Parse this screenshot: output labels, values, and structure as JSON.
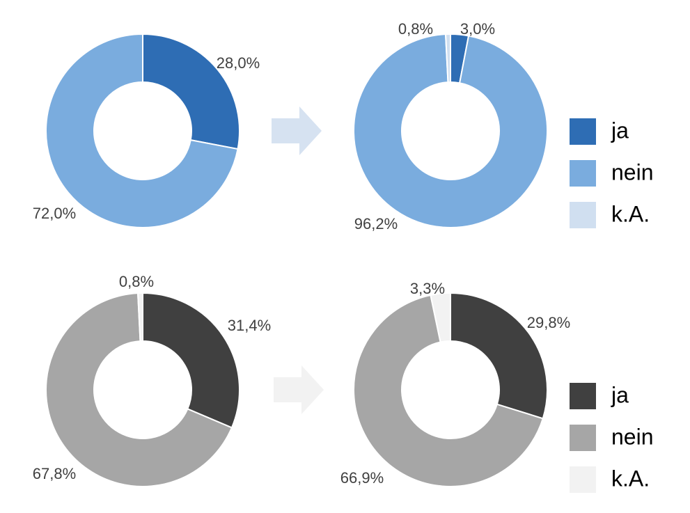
{
  "chart_data": [
    {
      "type": "pie",
      "donut": true,
      "categories": [
        "ja",
        "nein",
        "k.A."
      ],
      "values": [
        28.0,
        72.0,
        0.0
      ],
      "value_labels": [
        "28,0%",
        "72,0%",
        ""
      ],
      "colors": [
        "#2e6db4",
        "#7aacde",
        "#d0dff0"
      ]
    },
    {
      "type": "pie",
      "donut": true,
      "categories": [
        "ja",
        "nein",
        "k.A."
      ],
      "values": [
        3.0,
        96.2,
        0.8
      ],
      "value_labels": [
        "3,0%",
        "96,2%",
        "0,8%"
      ],
      "colors": [
        "#2e6db4",
        "#7aacde",
        "#d0dff0"
      ],
      "legend": {
        "placement": "right",
        "entries": [
          {
            "label": "ja",
            "color": "#2e6db4"
          },
          {
            "label": "nein",
            "color": "#7aacde"
          },
          {
            "label": "k.A.",
            "color": "#d0dff0"
          }
        ]
      }
    },
    {
      "type": "pie",
      "donut": true,
      "categories": [
        "ja",
        "nein",
        "k.A."
      ],
      "values": [
        31.4,
        67.8,
        0.8
      ],
      "value_labels": [
        "31,4%",
        "67,8%",
        "0,8%"
      ],
      "colors": [
        "#404040",
        "#a6a6a6",
        "#f2f2f2"
      ]
    },
    {
      "type": "pie",
      "donut": true,
      "categories": [
        "ja",
        "nein",
        "k.A."
      ],
      "values": [
        29.8,
        66.9,
        3.3
      ],
      "value_labels": [
        "29,8%",
        "66,9%",
        "3,3%"
      ],
      "colors": [
        "#404040",
        "#a6a6a6",
        "#f2f2f2"
      ],
      "legend": {
        "placement": "right",
        "entries": [
          {
            "label": "ja",
            "color": "#404040"
          },
          {
            "label": "nein",
            "color": "#a6a6a6"
          },
          {
            "label": "k.A.",
            "color": "#f2f2f2"
          }
        ]
      }
    }
  ],
  "arrows": [
    {
      "name": "arrow-blue",
      "color": "#d6e2f1"
    },
    {
      "name": "arrow-gray",
      "color": "#f2f2f2"
    }
  ]
}
